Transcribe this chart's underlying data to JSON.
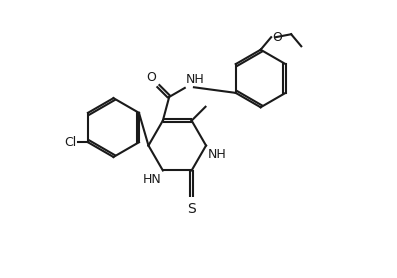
{
  "background": "#ffffff",
  "line_color": "#1a1a1a",
  "bond_lw": 1.5,
  "font_size": 9,
  "figsize": [
    3.97,
    2.78
  ],
  "dpi": 100,
  "xlim": [
    -1,
    10
  ],
  "ylim": [
    -0.5,
    8
  ]
}
